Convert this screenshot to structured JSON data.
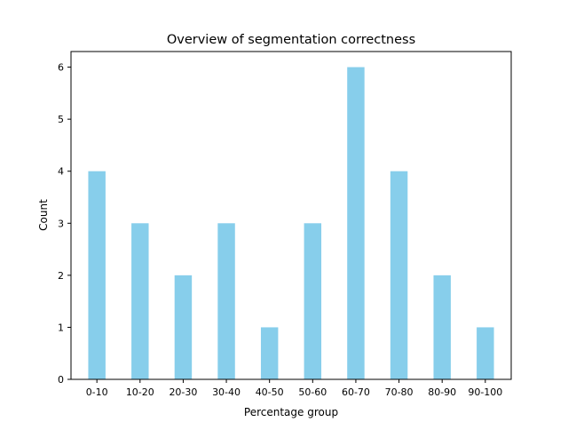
{
  "chart_data": {
    "type": "bar",
    "title": "Overview of segmentation correctness",
    "xlabel": "Percentage group",
    "ylabel": "Count",
    "categories": [
      "0-10",
      "10-20",
      "20-30",
      "30-40",
      "40-50",
      "50-60",
      "60-70",
      "70-80",
      "80-90",
      "90-100"
    ],
    "values": [
      4,
      3,
      2,
      3,
      1,
      3,
      6,
      4,
      2,
      1
    ],
    "ylim": [
      0,
      6.3
    ],
    "yticks": [
      "0",
      "1",
      "2",
      "3",
      "4",
      "5",
      "6"
    ],
    "grid": false,
    "legend": "none",
    "colors": {
      "bar": "#87CEEB",
      "axis": "#000000",
      "text": "#000000",
      "background": "#ffffff"
    }
  }
}
